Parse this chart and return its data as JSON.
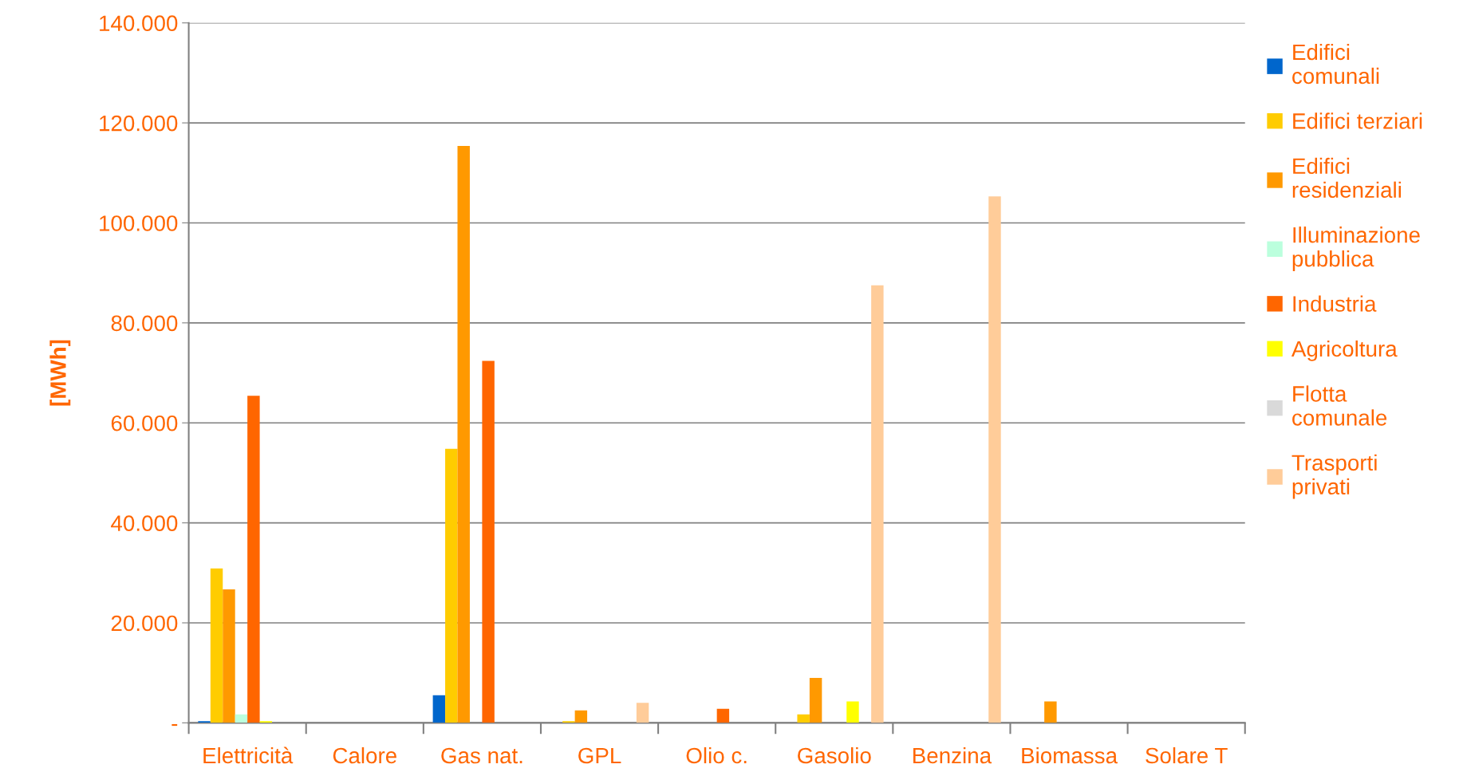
{
  "chart_data": {
    "type": "bar",
    "ylabel": "[MWh]",
    "categories": [
      "Elettricità",
      "Calore",
      "Gas nat.",
      "GPL",
      "Olio c.",
      "Gasolio",
      "Benzina",
      "Biomassa",
      "Solare T"
    ],
    "series": [
      {
        "name": "Edifici\ncomunali",
        "color": "#0066cc",
        "values": [
          350,
          0,
          5500,
          0,
          0,
          0,
          0,
          0,
          0
        ]
      },
      {
        "name": "Edifici terziari",
        "color": "#ffcc00",
        "values": [
          30900,
          0,
          54800,
          350,
          0,
          1700,
          0,
          0,
          0
        ]
      },
      {
        "name": "Edifici\nresidenziali",
        "color": "#ff9900",
        "values": [
          26700,
          0,
          115400,
          2500,
          0,
          9000,
          0,
          4300,
          0
        ]
      },
      {
        "name": "Illuminazione\npubblica",
        "color": "#bbffdd",
        "values": [
          1700,
          0,
          0,
          0,
          0,
          0,
          0,
          0,
          0
        ]
      },
      {
        "name": "Industria",
        "color": "#ff6600",
        "values": [
          65400,
          0,
          72400,
          0,
          2800,
          0,
          0,
          0,
          0
        ]
      },
      {
        "name": "Agricoltura",
        "color": "#ffff00",
        "values": [
          350,
          0,
          0,
          0,
          0,
          4300,
          0,
          0,
          0
        ]
      },
      {
        "name": "Flotta\ncomunale",
        "color": "#d9d9d9",
        "values": [
          0,
          0,
          0,
          0,
          0,
          0,
          0,
          0,
          0
        ]
      },
      {
        "name": "Trasporti\nprivati",
        "color": "#ffcc99",
        "values": [
          0,
          0,
          0,
          4000,
          0,
          87500,
          105300,
          0,
          0
        ]
      }
    ],
    "ylim": [
      0,
      140000
    ],
    "yticks": [
      {
        "value": 0,
        "label": "-"
      },
      {
        "value": 20000,
        "label": "20.000"
      },
      {
        "value": 40000,
        "label": "40.000"
      },
      {
        "value": 60000,
        "label": "60.000"
      },
      {
        "value": 80000,
        "label": "80.000"
      },
      {
        "value": 100000,
        "label": "100.000"
      },
      {
        "value": 120000,
        "label": "120.000"
      },
      {
        "value": 140000,
        "label": "140.000"
      }
    ],
    "grid": "y",
    "legend": "right"
  }
}
